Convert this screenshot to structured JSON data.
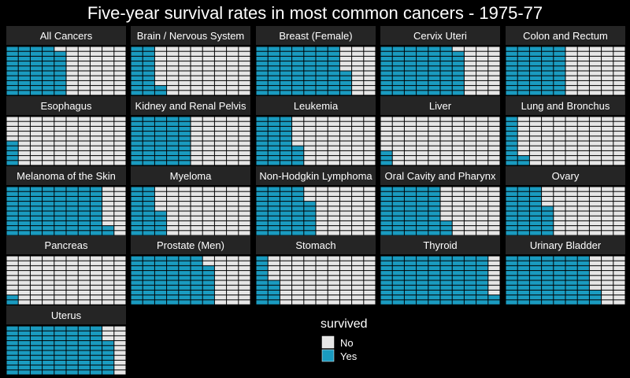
{
  "chart_data": {
    "type": "waffle",
    "title": "Five-year survival rates in most common cancers - 1975-77",
    "grid": {
      "rows": 10,
      "cols": 10
    },
    "legend": {
      "title": "survived",
      "position": "bottom-center",
      "entries": [
        {
          "label": "No",
          "color": "#e6e6e6"
        },
        {
          "label": "Yes",
          "color": "#1a9bc0"
        }
      ]
    },
    "colors": {
      "no": "#e6e6e6",
      "yes": "#1a9bc0",
      "strip": "#252525",
      "background": "#000000"
    },
    "series": [
      {
        "name": "All Cancers",
        "survived_pct": 49
      },
      {
        "name": "Brain / Nervous System",
        "survived_pct": 22
      },
      {
        "name": "Breast (Female)",
        "survived_pct": 75
      },
      {
        "name": "Cervix Uteri",
        "survived_pct": 69
      },
      {
        "name": "Colon and Rectum",
        "survived_pct": 50
      },
      {
        "name": "Esophagus",
        "survived_pct": 5
      },
      {
        "name": "Kidney and Renal Pelvis",
        "survived_pct": 50
      },
      {
        "name": "Leukemia",
        "survived_pct": 34
      },
      {
        "name": "Liver",
        "survived_pct": 3
      },
      {
        "name": "Lung and Bronchus",
        "survived_pct": 12
      },
      {
        "name": "Melanoma of the Skin",
        "survived_pct": 82
      },
      {
        "name": "Myeloma",
        "survived_pct": 25
      },
      {
        "name": "Non-Hodgkin Lymphoma",
        "survived_pct": 47
      },
      {
        "name": "Oral Cavity and Pharynx",
        "survived_pct": 53
      },
      {
        "name": "Ovary",
        "survived_pct": 36
      },
      {
        "name": "Pancreas",
        "survived_pct": 2
      },
      {
        "name": "Prostate (Men)",
        "survived_pct": 68
      },
      {
        "name": "Stomach",
        "survived_pct": 15
      },
      {
        "name": "Thyroid",
        "survived_pct": 92
      },
      {
        "name": "Urinary Bladder",
        "survived_pct": 73
      },
      {
        "name": "Uterus",
        "survived_pct": 87
      }
    ]
  }
}
